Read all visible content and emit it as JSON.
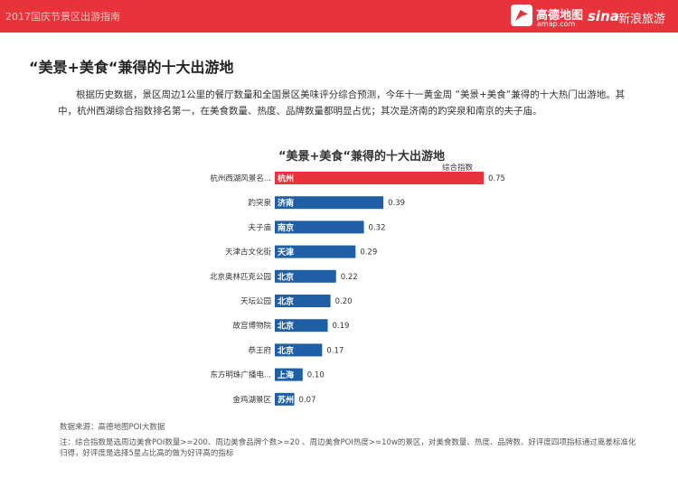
{
  "header": {
    "report_title": "2017国庆节景区出游指南",
    "amap_name": "高德地图",
    "amap_domain": "amap.com",
    "sina_logo": "sina",
    "sina_travel": "新浪旅游",
    "bar_color": "#e8333b"
  },
  "headline": "“美景+美食“兼得的十大出游地",
  "intro": "根据历史数据，景区周边1公里的餐厅数量和全国景区美味评分综合预测，今年十一黄金周 “美景+美食“兼得的十大热门出游地。其中，杭州西湖综合指数排名第一，在美食数量、热度、品牌数量都明显占优；其次是济南的趵突泉和南京的夫子庙。",
  "chart_data": {
    "type": "bar",
    "orientation": "horizontal",
    "title": "“美景+美食“兼得的十大出游地",
    "ylabel": "综合指数",
    "categories": [
      "杭州西湖风景名...",
      "趵突泉",
      "夫子庙",
      "天津古文化街",
      "北京奥林匹克公园",
      "天坛公园",
      "故宫博物院",
      "恭王府",
      "东方明珠广播电...",
      "金鸡湖景区"
    ],
    "cities": [
      "杭州",
      "济南",
      "南京",
      "天津",
      "北京",
      "北京",
      "北京",
      "北京",
      "上海",
      "苏州"
    ],
    "values": [
      0.75,
      0.39,
      0.32,
      0.29,
      0.22,
      0.2,
      0.19,
      0.17,
      0.1,
      0.07
    ],
    "value_labels": [
      "0.75",
      "0.39",
      "0.32",
      "0.29",
      "0.22",
      "0.20",
      "0.19",
      "0.17",
      "0.10",
      "0.07"
    ],
    "highlight_color": "#e8333b",
    "bar_color": "#1f5fa6",
    "xlim": [
      0,
      0.75
    ]
  },
  "source": "数据来源：高德地图POI大数据",
  "note": "注：综合指数是选周边美食POI数量>=200、周边美食品牌个数>=20 、周边美食POI热度>=10w的景区，对美食数量、热度、品牌数、好评度四项指标通过离差标准化归得，好评度是选择5星占比高的做为好评高的指标"
}
